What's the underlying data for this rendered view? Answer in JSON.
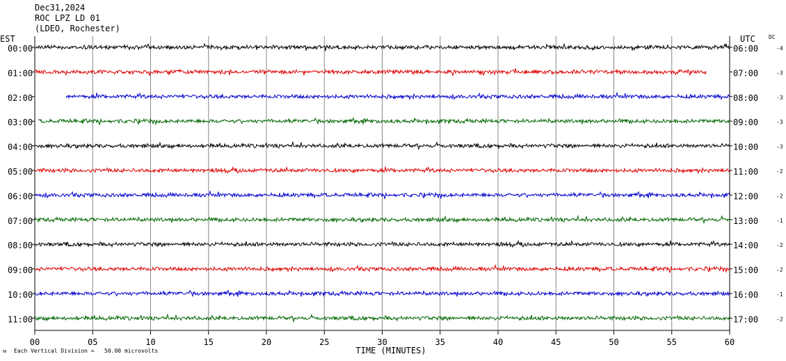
{
  "header": {
    "date": "Dec31,2024",
    "station": "ROC LPZ LD 01",
    "network": "(LDEO, Rochester)"
  },
  "labels": {
    "left_tz": "EST",
    "right_tz": "UTC",
    "dc": "DC",
    "x_title": "TIME (MINUTES)",
    "footnote": "Each Vertical Division =   50.00 microvolts",
    "corner_mark": "ᴍ"
  },
  "colors": {
    "black": "#000000",
    "red": "#dd0000",
    "blue": "#0000cc",
    "green": "#006600",
    "grid": "#888888"
  },
  "chart_data": {
    "type": "line",
    "title": "ROC LPZ LD 01",
    "xlabel": "TIME (MINUTES)",
    "xlim": [
      0,
      60
    ],
    "x_ticks": [
      "00",
      "05",
      "10",
      "15",
      "20",
      "25",
      "30",
      "35",
      "40",
      "45",
      "50",
      "55",
      "60"
    ],
    "rows": [
      {
        "est": "00:00",
        "utc": "06:00",
        "dc": "-4",
        "color": "black",
        "start_min": 0,
        "end_min": 60
      },
      {
        "est": "01:00",
        "utc": "07:00",
        "dc": "-3",
        "color": "red",
        "start_min": 0,
        "end_min": 58
      },
      {
        "est": "02:00",
        "utc": "08:00",
        "dc": "-3",
        "color": "blue",
        "start_min": 2.7,
        "end_min": 60
      },
      {
        "est": "03:00",
        "utc": "09:00",
        "dc": "-3",
        "color": "green",
        "start_min": 0.3,
        "end_min": 60
      },
      {
        "est": "04:00",
        "utc": "10:00",
        "dc": "-3",
        "color": "black",
        "start_min": 0,
        "end_min": 60
      },
      {
        "est": "05:00",
        "utc": "11:00",
        "dc": "-2",
        "color": "red",
        "start_min": 0,
        "end_min": 60
      },
      {
        "est": "06:00",
        "utc": "12:00",
        "dc": "-2",
        "color": "blue",
        "start_min": 0,
        "end_min": 60
      },
      {
        "est": "07:00",
        "utc": "13:00",
        "dc": "-1",
        "color": "green",
        "start_min": 0,
        "end_min": 60
      },
      {
        "est": "08:00",
        "utc": "14:00",
        "dc": "-2",
        "color": "black",
        "start_min": 0,
        "end_min": 60
      },
      {
        "est": "09:00",
        "utc": "15:00",
        "dc": "-2",
        "color": "red",
        "start_min": 0,
        "end_min": 60
      },
      {
        "est": "10:00",
        "utc": "16:00",
        "dc": "-1",
        "color": "blue",
        "start_min": 0,
        "end_min": 60
      },
      {
        "est": "11:00",
        "utc": "17:00",
        "dc": "-2",
        "color": "green",
        "start_min": 0,
        "end_min": 60
      }
    ]
  }
}
